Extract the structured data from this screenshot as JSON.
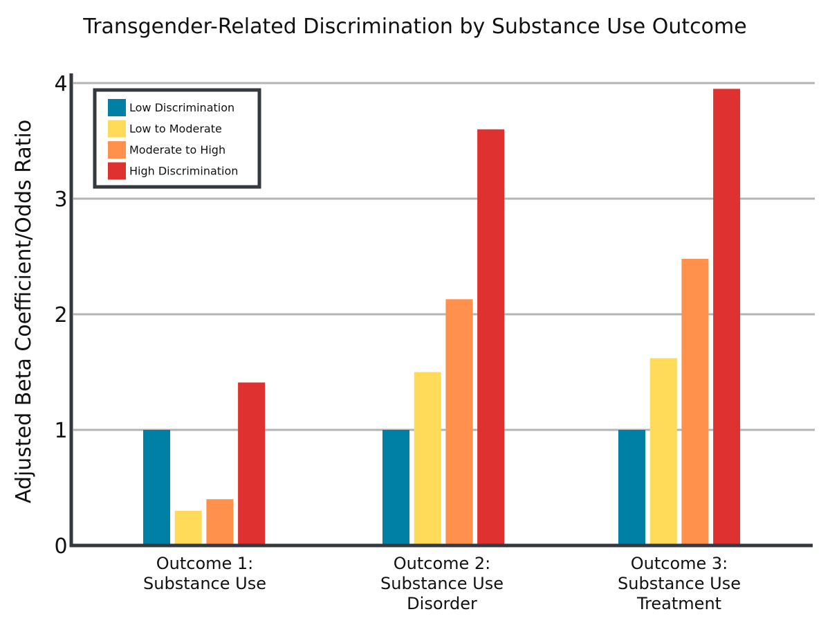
{
  "chart_data": {
    "type": "bar",
    "title": "Transgender-Related Discrimination by Substance Use Outcome",
    "xlabel": "",
    "ylabel": "Adjusted Beta Coefficient/Odds Ratio",
    "ylim": [
      0,
      4
    ],
    "yticks": [
      "0",
      "1",
      "2",
      "3",
      "4"
    ],
    "grid": true,
    "legend_position": "top-left",
    "categories": [
      [
        "Outcome 1:",
        "Substance Use"
      ],
      [
        "Outcome 2:",
        "Substance Use",
        "Disorder"
      ],
      [
        "Outcome 3:",
        "Substance Use",
        "Treatment"
      ]
    ],
    "series": [
      {
        "name": "Low Discrimination",
        "color": "#0080a5",
        "values": [
          1.0,
          1.0,
          1.0
        ]
      },
      {
        "name": "Low to Moderate",
        "color": "#ffdb59",
        "values": [
          0.3,
          1.5,
          1.62
        ]
      },
      {
        "name": "Moderate to High",
        "color": "#ff914d",
        "values": [
          0.4,
          2.13,
          2.48
        ]
      },
      {
        "name": "High Discrimination",
        "color": "#e03131",
        "values": [
          1.41,
          3.6,
          3.95
        ]
      }
    ],
    "colors": {
      "axis": "#33393f",
      "grid": "#b4b4b4",
      "legend_border": "#33393f"
    }
  }
}
